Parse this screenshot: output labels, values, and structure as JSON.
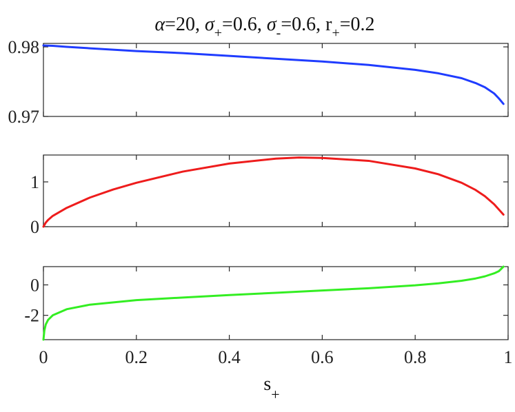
{
  "chart_data": {
    "type": "line",
    "title_parts": {
      "alpha_symbol": "α",
      "alpha_value": "=20, ",
      "sigma_symbol": "σ",
      "plus_sub": "+",
      "sigma_plus_value": "=0.6, ",
      "minus_sub": "-",
      "sigma_minus_value": "=0.6, ",
      "r_letter": "r",
      "r_plus_value": "=0.2"
    },
    "xlabel": {
      "base": "s",
      "sub": "+"
    },
    "xlim": [
      0,
      1
    ],
    "xticks": [
      0,
      0.2,
      0.4,
      0.6,
      0.8,
      1
    ],
    "xtick_labels": [
      "0",
      "0.2",
      "0.4",
      "0.6",
      "0.8",
      "1"
    ],
    "grid": false,
    "subplots": [
      {
        "color": "#1f3cff",
        "ylim": [
          0.97,
          0.9805
        ],
        "yticks": [
          0.97,
          0.98
        ],
        "ytick_labels": [
          "0.97",
          "0.98"
        ],
        "series": {
          "x": [
            0.0,
            0.02,
            0.05,
            0.1,
            0.2,
            0.3,
            0.4,
            0.5,
            0.6,
            0.7,
            0.8,
            0.85,
            0.9,
            0.93,
            0.95,
            0.97,
            0.98,
            0.99
          ],
          "y": [
            0.9802,
            0.98015,
            0.98,
            0.9798,
            0.9794,
            0.9791,
            0.9787,
            0.9783,
            0.9779,
            0.9774,
            0.9767,
            0.9762,
            0.9755,
            0.9748,
            0.9742,
            0.9733,
            0.9726,
            0.9718
          ]
        }
      },
      {
        "color": "#ee1c1c",
        "ylim": [
          0,
          1.6
        ],
        "yticks": [
          0,
          1
        ],
        "ytick_labels": [
          "0",
          "1"
        ],
        "series": {
          "x": [
            0.0,
            0.005,
            0.01,
            0.02,
            0.05,
            0.1,
            0.15,
            0.2,
            0.3,
            0.4,
            0.5,
            0.55,
            0.6,
            0.7,
            0.8,
            0.85,
            0.9,
            0.93,
            0.95,
            0.97,
            0.99
          ],
          "y": [
            0.0,
            0.09,
            0.15,
            0.24,
            0.42,
            0.65,
            0.83,
            0.98,
            1.23,
            1.41,
            1.52,
            1.545,
            1.535,
            1.47,
            1.3,
            1.17,
            0.98,
            0.82,
            0.68,
            0.5,
            0.27
          ]
        }
      },
      {
        "color": "#33ee22",
        "ylim": [
          -3.6,
          1.2
        ],
        "yticks": [
          -2,
          0
        ],
        "ytick_labels": [
          "-2",
          "0"
        ],
        "series": {
          "x": [
            0.0,
            0.002,
            0.005,
            0.01,
            0.02,
            0.05,
            0.1,
            0.2,
            0.3,
            0.4,
            0.5,
            0.6,
            0.7,
            0.8,
            0.85,
            0.9,
            0.93,
            0.95,
            0.97,
            0.98,
            0.99
          ],
          "y": [
            -3.6,
            -3.0,
            -2.6,
            -2.3,
            -2.0,
            -1.6,
            -1.3,
            -1.0,
            -0.83,
            -0.67,
            -0.52,
            -0.37,
            -0.22,
            -0.03,
            0.1,
            0.27,
            0.42,
            0.56,
            0.76,
            0.9,
            1.2
          ]
        }
      }
    ]
  }
}
